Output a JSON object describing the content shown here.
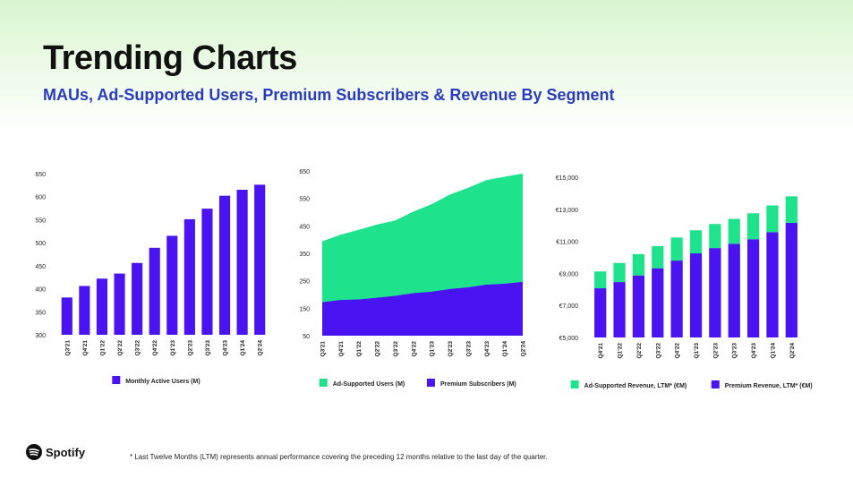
{
  "header": {
    "title": "Trending Charts",
    "subtitle": "MAUs, Ad-Supported Users, Premium Subscribers & Revenue By Segment"
  },
  "logo": "Spotify",
  "footnote": "* Last Twelve Months (LTM) represents annual performance covering the preceding 12 months relative to the last day of the quarter.",
  "chart_data": [
    {
      "type": "bar",
      "categories": [
        "Q3'21",
        "Q4'21",
        "Q1'22",
        "Q2'22",
        "Q3'22",
        "Q4'22",
        "Q1'23",
        "Q2'23",
        "Q3'23",
        "Q4'23",
        "Q1'24",
        "Q2'24"
      ],
      "series": [
        {
          "name": "Monthly Active Users (M)",
          "color": "#4a14f2",
          "values": [
            381,
            406,
            422,
            433,
            456,
            489,
            515,
            551,
            574,
            602,
            615,
            626
          ]
        }
      ],
      "ylim": [
        300,
        650
      ],
      "yticks": [
        300,
        350,
        400,
        450,
        500,
        550,
        600,
        650
      ]
    },
    {
      "type": "area",
      "categories": [
        "Q3'21",
        "Q4'21",
        "Q1'22",
        "Q2'22",
        "Q3'22",
        "Q4'22",
        "Q1'23",
        "Q2'23",
        "Q3'23",
        "Q4'23",
        "Q1'24",
        "Q2'24"
      ],
      "series": [
        {
          "name": "Ad-Supported Users (M)",
          "color": "#1ee38c",
          "values": [
            220,
            236,
            252,
            265,
            273,
            295,
            317,
            342,
            361,
            379,
            388,
            393
          ]
        },
        {
          "name": "Premium Subscribers (M)",
          "color": "#4a14f2",
          "values": [
            172,
            180,
            182,
            188,
            195,
            205,
            210,
            220,
            226,
            236,
            239,
            246
          ]
        }
      ],
      "ylim": [
        50,
        650
      ],
      "yticks": [
        50,
        150,
        250,
        350,
        450,
        550,
        650
      ]
    },
    {
      "type": "bar",
      "categories": [
        "Q4'21",
        "Q1'22",
        "Q2'22",
        "Q3'22",
        "Q4'22",
        "Q1'23",
        "Q2'23",
        "Q3'23",
        "Q4'23",
        "Q1'24",
        "Q2'24"
      ],
      "series": [
        {
          "name": "Ad-Supported Revenue, LTM* (€M)",
          "color": "#1ee38c",
          "values": [
            1050,
            1190,
            1330,
            1380,
            1440,
            1440,
            1500,
            1550,
            1620,
            1670,
            1660
          ]
        },
        {
          "name": "Premium Revenue, LTM* (€M)",
          "color": "#4a14f2",
          "values": [
            8070,
            8460,
            8870,
            9320,
            9800,
            10250,
            10580,
            10850,
            11130,
            11570,
            12150
          ]
        }
      ],
      "ylim": [
        5000,
        15000
      ],
      "yticks": [
        {
          "value": 5000,
          "label": "€5,000"
        },
        {
          "value": 7000,
          "label": "€7,000"
        },
        {
          "value": 9000,
          "label": "€9,000"
        },
        {
          "value": 11000,
          "label": "€11,000"
        },
        {
          "value": 13000,
          "label": "€13,000"
        },
        {
          "value": 15000,
          "label": "€15,000"
        }
      ]
    }
  ]
}
